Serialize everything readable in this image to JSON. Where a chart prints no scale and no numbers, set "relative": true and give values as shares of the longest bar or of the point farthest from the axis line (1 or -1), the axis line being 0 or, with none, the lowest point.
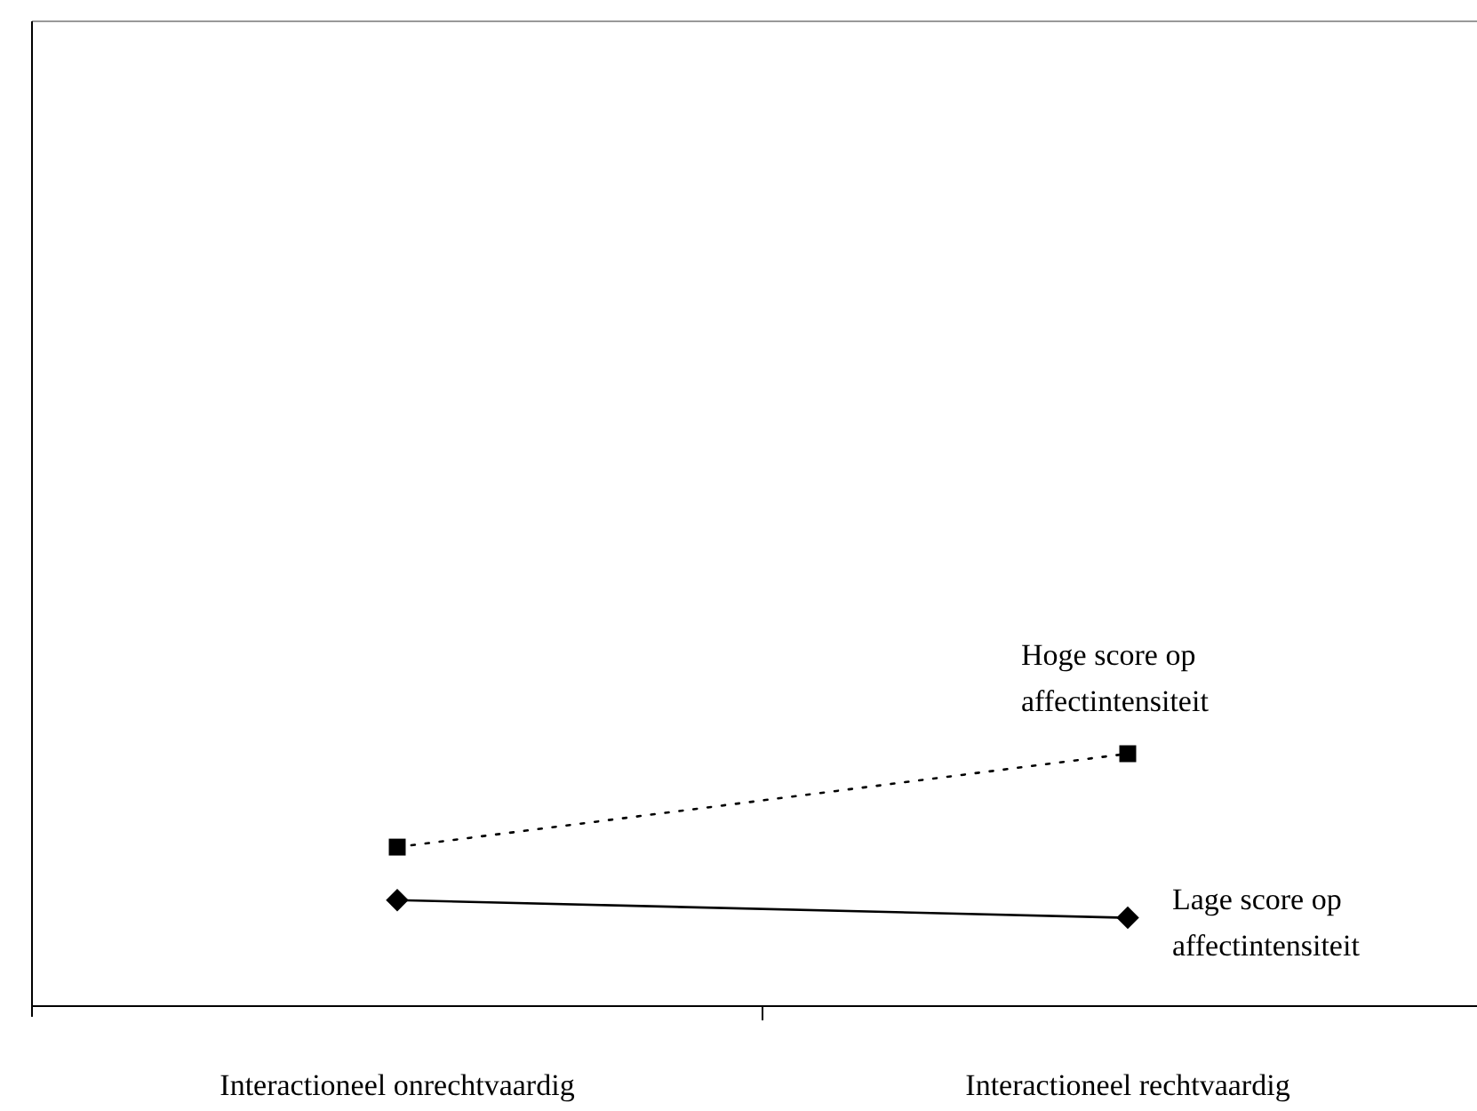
{
  "chart_data": {
    "type": "line",
    "relative": true,
    "categories": [
      "Interactioneel onrechtvaardig",
      "Interactioneel rechtvaardig"
    ],
    "series": [
      {
        "name": "Hoge score op affectintensiteit",
        "color": "#000000",
        "values": [
          0.63,
          1
        ],
        "marker": "square",
        "line_style": "dotted"
      },
      {
        "name": "Lage score op affectintensiteit",
        "color": "#000000",
        "values": [
          0.42,
          0.35
        ],
        "marker": "diamond",
        "line_style": "solid"
      }
    ]
  }
}
